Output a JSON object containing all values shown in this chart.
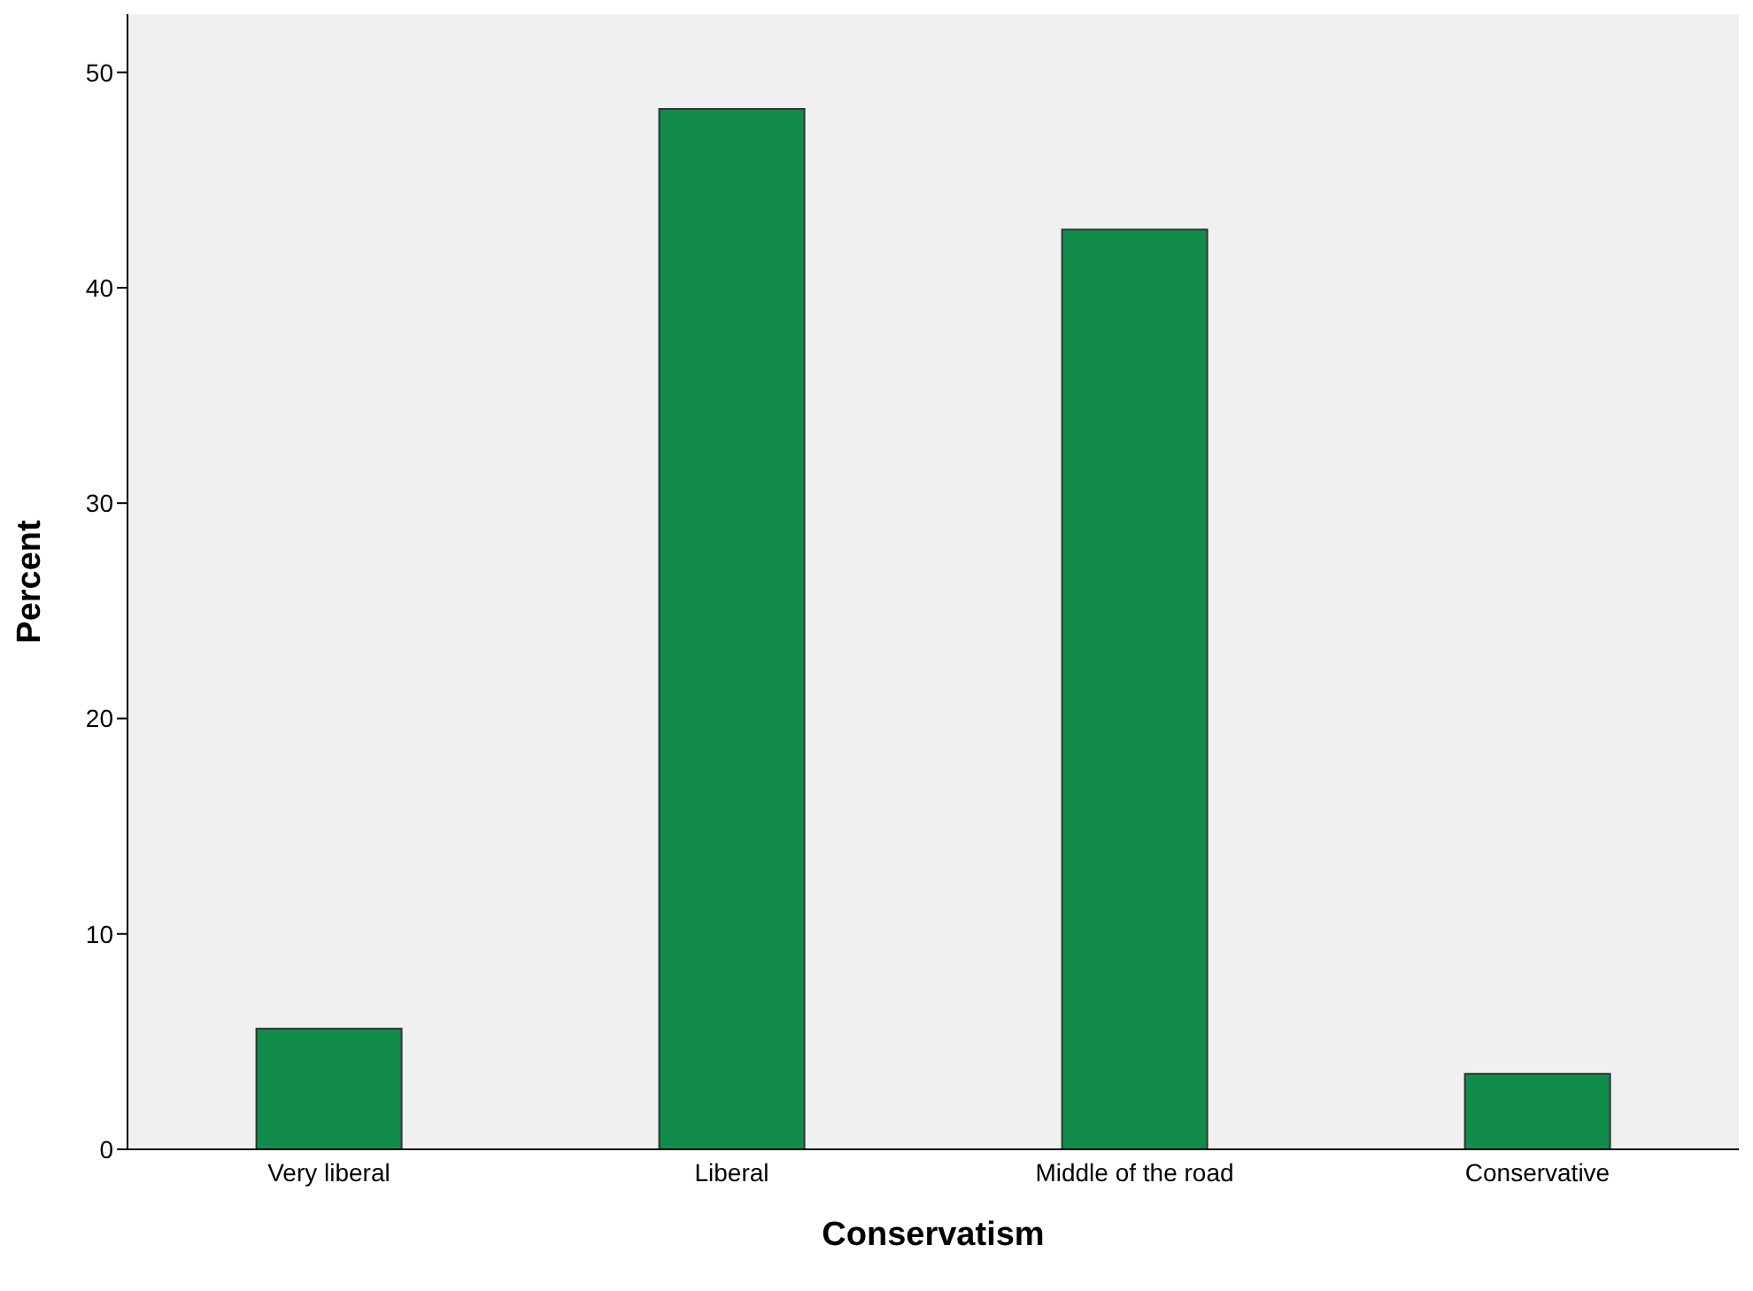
{
  "chart_data": {
    "type": "bar",
    "xlabel": "Conservatism",
    "ylabel": "Percent",
    "categories": [
      "Very liberal",
      "Liberal",
      "Middle of the road",
      "Conservative"
    ],
    "values": [
      5.6,
      48.3,
      42.7,
      3.5
    ],
    "color": "#118c4a",
    "ylim": [
      0,
      52.7
    ],
    "yticks": [
      0,
      10,
      20,
      30,
      40,
      50
    ],
    "grid": false
  }
}
